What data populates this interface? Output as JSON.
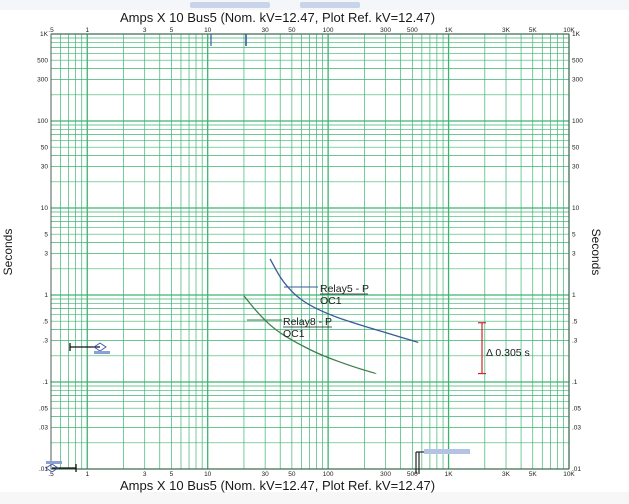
{
  "chart_data": {
    "type": "line",
    "title": "Amps  X  10   Bus5 (Nom. kV=12.47, Plot Ref. kV=12.47)",
    "bottom_title": "Amps  X  10   Bus5 (Nom. kV=12.47, Plot Ref. kV=12.47)",
    "xlabel": "Amps X 10",
    "ylabel": "Seconds",
    "x_scale": "log",
    "y_scale": "log",
    "xlim": [
      0.5,
      10000
    ],
    "ylim": [
      0.01,
      1000
    ],
    "x_ticks": [
      {
        "value": 0.5,
        "label": ".5"
      },
      {
        "value": 1,
        "label": "1"
      },
      {
        "value": 3,
        "label": "3"
      },
      {
        "value": 5,
        "label": "5"
      },
      {
        "value": 10,
        "label": "10"
      },
      {
        "value": 30,
        "label": "30"
      },
      {
        "value": 50,
        "label": "50"
      },
      {
        "value": 100,
        "label": "100"
      },
      {
        "value": 300,
        "label": "300"
      },
      {
        "value": 500,
        "label": "500"
      },
      {
        "value": 1000,
        "label": "1K"
      },
      {
        "value": 3000,
        "label": "3K"
      },
      {
        "value": 5000,
        "label": "5K"
      },
      {
        "value": 10000,
        "label": "10K"
      }
    ],
    "y_ticks": [
      {
        "value": 1000,
        "label": "1K"
      },
      {
        "value": 500,
        "label": "500"
      },
      {
        "value": 300,
        "label": "300"
      },
      {
        "value": 100,
        "label": "100"
      },
      {
        "value": 50,
        "label": "50"
      },
      {
        "value": 30,
        "label": "30"
      },
      {
        "value": 10,
        "label": "10"
      },
      {
        "value": 5,
        "label": "5"
      },
      {
        "value": 3,
        "label": "3"
      },
      {
        "value": 1,
        "label": "1"
      },
      {
        "value": 0.5,
        "label": ".5"
      },
      {
        "value": 0.3,
        "label": ".3"
      },
      {
        "value": 0.1,
        "label": ".1"
      },
      {
        "value": 0.05,
        "label": ".05"
      },
      {
        "value": 0.03,
        "label": ".03"
      },
      {
        "value": 0.01,
        "label": ".01"
      }
    ],
    "grid": true,
    "series": [
      {
        "name": "Relay5 - P OC1",
        "label_lines": [
          "Relay5 - P",
          "OC1"
        ],
        "color": "#3a5a9a",
        "points": [
          [
            33,
            2.6
          ],
          [
            42,
            1.4
          ],
          [
            60,
            0.85
          ],
          [
            100,
            0.6
          ],
          [
            160,
            0.48
          ],
          [
            280,
            0.38
          ],
          [
            560,
            0.285
          ]
        ]
      },
      {
        "name": "Relay8 - P OC1",
        "label_lines": [
          "Relay8 - P",
          "OC1"
        ],
        "color": "#3f7f4f",
        "points": [
          [
            20,
            0.98
          ],
          [
            26,
            0.62
          ],
          [
            36,
            0.4
          ],
          [
            55,
            0.28
          ],
          [
            90,
            0.2
          ],
          [
            160,
            0.15
          ],
          [
            250,
            0.125
          ]
        ]
      }
    ],
    "annotations": [
      {
        "text": "Δ 0.305 s",
        "x": 1350,
        "y_low": 0.125,
        "y_high": 0.48,
        "color": "#cc2a2a"
      }
    ],
    "grid_color": "#3cb371",
    "background_color": "#ffffff"
  }
}
